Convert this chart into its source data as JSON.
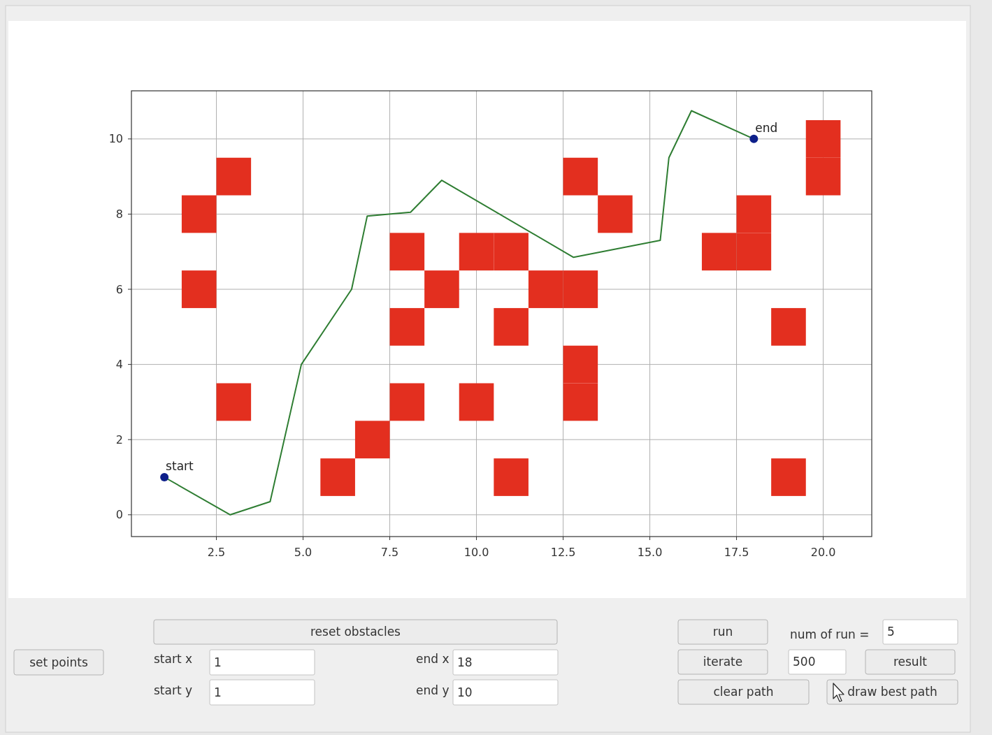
{
  "chart_data": {
    "type": "scatter",
    "xlim": [
      0.05,
      21.4
    ],
    "ylim": [
      -0.58,
      11.28
    ],
    "xticks": [
      {
        "value": 2.5,
        "label": "2.5"
      },
      {
        "value": 5,
        "label": "5.0"
      },
      {
        "value": 7.5,
        "label": "7.5"
      },
      {
        "value": 10,
        "label": "10.0"
      },
      {
        "value": 12.5,
        "label": "12.5"
      },
      {
        "value": 15,
        "label": "15.0"
      },
      {
        "value": 17.5,
        "label": "17.5"
      },
      {
        "value": 20,
        "label": "20.0"
      }
    ],
    "yticks": [
      0,
      2,
      4,
      6,
      8,
      10
    ],
    "grid": true,
    "series": [
      {
        "type": "bar",
        "color": "#e32f1f",
        "x": [
          2,
          3,
          6,
          7,
          8,
          9,
          10,
          11,
          12,
          13,
          14,
          17,
          18,
          19,
          20
        ],
        "base": [
          5.5,
          2.5,
          0.5,
          1.5,
          2.5,
          5.5,
          2.5,
          0.5,
          5.5,
          2.5,
          7.5,
          6.5,
          6.5,
          0.5,
          8.5
        ],
        "values": [
          1,
          1,
          1,
          1,
          1,
          1,
          1,
          1,
          1,
          1,
          1,
          1,
          1,
          1,
          1
        ]
      },
      {
        "type": "bar",
        "color": "#e32f1f",
        "x": [
          2,
          3,
          8,
          10,
          11,
          13,
          18,
          19,
          20
        ],
        "base": [
          7.5,
          8.5,
          4.5,
          6.5,
          4.5,
          3.5,
          7.5,
          4.5,
          9.5
        ],
        "values": [
          1,
          1,
          1,
          1,
          1,
          1,
          1,
          1,
          1
        ]
      },
      {
        "type": "bar",
        "color": "#e32f1f",
        "x": [
          8,
          11,
          13
        ],
        "base": [
          6.5,
          6.5,
          5.5
        ],
        "values": [
          1,
          1,
          1
        ]
      },
      {
        "type": "bar",
        "color": "#e32f1f",
        "x": [
          13
        ],
        "base": [
          8.5
        ],
        "values": [
          1
        ]
      },
      {
        "type": "line",
        "marker": "none",
        "line_style": "solid",
        "color": "#2e7d32",
        "x": [
          1,
          2.9,
          4.05,
          4.95,
          6.4,
          6.85,
          8.1,
          9.0,
          12.8,
          15.3,
          15.55,
          16.2,
          18
        ],
        "values": [
          1,
          0,
          0.35,
          4.0,
          6.0,
          7.95,
          8.05,
          8.9,
          6.85,
          7.3,
          9.5,
          10.75,
          10
        ]
      },
      {
        "marker": "circle",
        "color": "#0d1f8a",
        "x": [
          1,
          18
        ],
        "values": [
          1,
          10
        ]
      }
    ],
    "annotations": [
      {
        "text": "start",
        "x": 1,
        "y": 1
      },
      {
        "text": "end",
        "x": 18,
        "y": 10
      },
      "reset obstacles",
      "set points",
      "start x",
      "1",
      "start y",
      "1",
      "end x",
      "18",
      "end y",
      "10",
      "run",
      "num of run =",
      "5",
      "iterate",
      "500",
      "result",
      "clear path",
      "draw best path"
    ]
  }
}
